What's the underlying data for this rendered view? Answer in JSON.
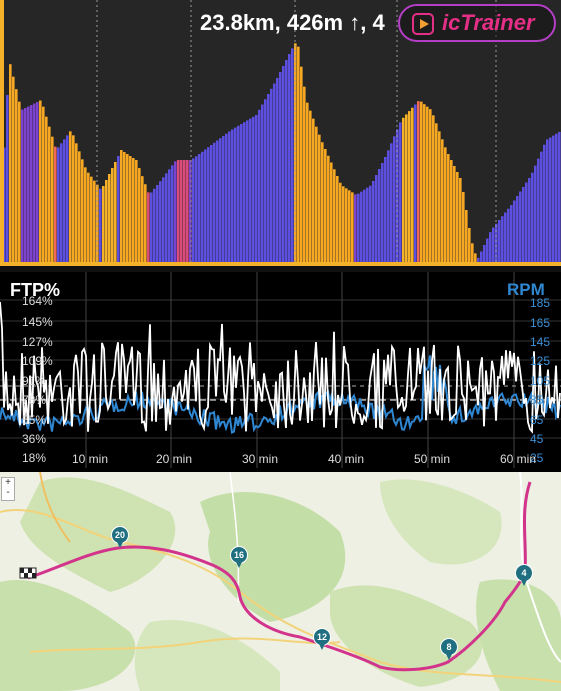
{
  "header": {
    "stats_text": "23.8km, 426m ↑, 4",
    "brand_name": "icTrainer",
    "brand_color": "#e52f86"
  },
  "power_chart": {
    "left_title": "FTP%",
    "right_title": "RPM",
    "left_ticks": [
      "164%",
      "145%",
      "127%",
      "109%",
      "91%",
      "73%",
      "55%",
      "36%",
      "18%"
    ],
    "right_ticks": [
      "185",
      "165",
      "145",
      "125",
      "105",
      "85",
      "65",
      "45",
      "25"
    ],
    "x_ticks": [
      "10 min",
      "20 min",
      "30 min",
      "40 min",
      "50 min",
      "60 min"
    ],
    "power_color": "#ffffff",
    "cadence_color": "#2f87d2"
  },
  "map": {
    "zoom_in": "+",
    "zoom_out": "-",
    "route_color": "#d2348c",
    "markers": [
      "20",
      "16",
      "12",
      "8",
      "4"
    ]
  }
}
